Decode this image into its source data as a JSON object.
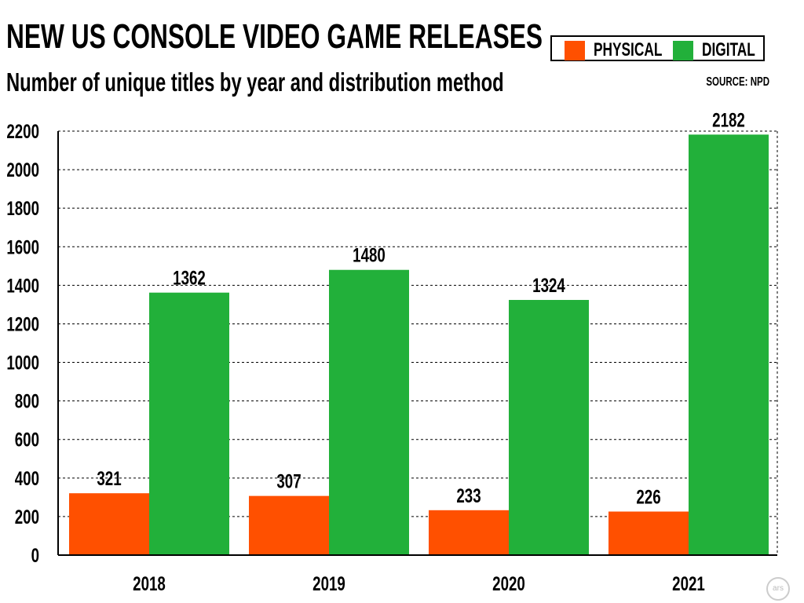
{
  "chart_data": {
    "type": "bar",
    "title": "NEW US CONSOLE VIDEO GAME RELEASES",
    "subtitle": "Number of unique titles by year and distribution method",
    "source": "SOURCE: NPD",
    "categories": [
      "2018",
      "2019",
      "2020",
      "2021"
    ],
    "series": [
      {
        "name": "PHYSICAL",
        "color": "#FF5000",
        "values": [
          321,
          307,
          233,
          226
        ]
      },
      {
        "name": "DIGITAL",
        "color": "#22B03A",
        "values": [
          1362,
          1480,
          1324,
          2182
        ]
      }
    ],
    "ylim": [
      0,
      2200
    ],
    "yticks": [
      0,
      200,
      400,
      600,
      800,
      1000,
      1200,
      1400,
      1600,
      1800,
      2000,
      2200
    ],
    "grid": "horizontal dotted",
    "legend": "top-right",
    "data_labels": true
  },
  "logo": "ars"
}
